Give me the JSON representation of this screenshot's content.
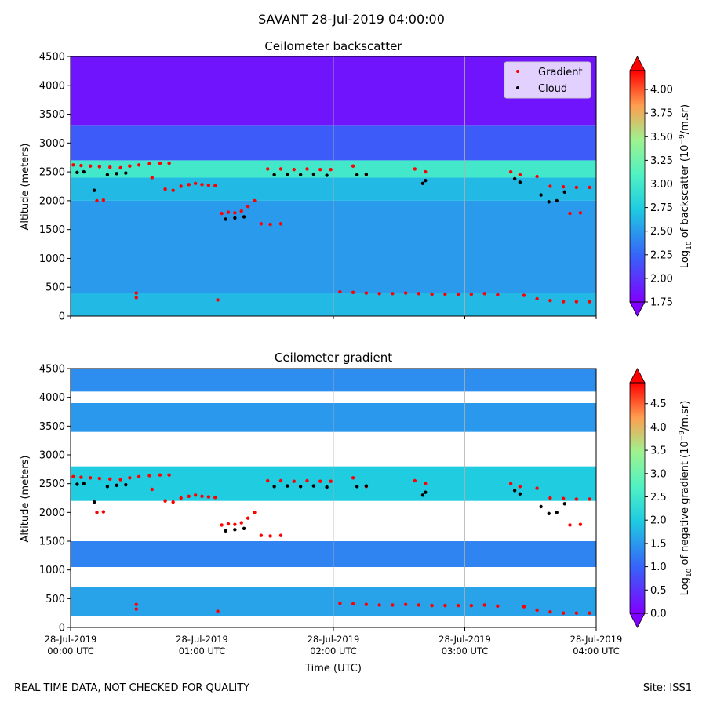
{
  "suptitle": "SAVANT 28-Jul-2019 04:00:00",
  "footer": {
    "left": "REAL TIME DATA, NOT CHECKED FOR QUALITY",
    "right": "Site: ISS1"
  },
  "colors": {
    "gradient_marker": "#ff0000",
    "cloud_marker": "#000000"
  },
  "chart_data": [
    {
      "type": "heatmap",
      "title": "Ceilometer backscatter",
      "ylabel": "Altitude (meters)",
      "xlabel": "",
      "ylim": [
        0,
        4500
      ],
      "yticks": [
        "0",
        "500",
        "1000",
        "1500",
        "2000",
        "2500",
        "3000",
        "3500",
        "4000",
        "4500"
      ],
      "xlim": [
        "28-Jul-2019 00:00 UTC",
        "28-Jul-2019 04:00 UTC"
      ],
      "grid": "vertical lines at each hour",
      "colormap": "rainbow",
      "colorbar": {
        "label_prefix": "Log",
        "label_sub": "10",
        "label_rest": " of backscatter (10",
        "label_sup": "−9",
        "label_end": "/m.sr)",
        "ticks": [
          "1.75",
          "2.00",
          "2.25",
          "2.50",
          "2.75",
          "3.00",
          "3.25",
          "3.50",
          "3.75",
          "4.00"
        ],
        "range": [
          1.75,
          4.2
        ]
      },
      "legend": {
        "placement": "top-right",
        "entries": [
          "Gradient",
          "Cloud"
        ]
      },
      "layers": [
        {
          "altitude_range": [
            0,
            400
          ],
          "value": 2.65
        },
        {
          "altitude_range": [
            400,
            2000
          ],
          "value": 2.5
        },
        {
          "altitude_range": [
            2000,
            2400
          ],
          "value": 2.65
        },
        {
          "altitude_range": [
            2400,
            2700
          ],
          "value": 3.0
        },
        {
          "altitude_range": [
            2700,
            3300
          ],
          "value": 2.2
        },
        {
          "altitude_range": [
            3300,
            4500
          ],
          "value": 1.85
        }
      ]
    },
    {
      "type": "heatmap",
      "title": "Ceilometer gradient",
      "ylabel": "Altitude (meters)",
      "xlabel": "Time (UTC)",
      "ylim": [
        0,
        4500
      ],
      "yticks": [
        "0",
        "500",
        "1000",
        "1500",
        "2000",
        "2500",
        "3000",
        "3500",
        "4000",
        "4500"
      ],
      "xticks": [
        [
          "28-Jul-2019",
          "00:00 UTC"
        ],
        [
          "28-Jul-2019",
          "01:00 UTC"
        ],
        [
          "28-Jul-2019",
          "02:00 UTC"
        ],
        [
          "28-Jul-2019",
          "03:00 UTC"
        ],
        [
          "28-Jul-2019",
          "04:00 UTC"
        ]
      ],
      "grid": "vertical lines at each hour",
      "colormap": "rainbow",
      "colorbar": {
        "label_prefix": "Log",
        "label_sub": "10",
        "label_rest": " of negative gradient (10",
        "label_sup": "−9",
        "label_end": "/m.sr)",
        "ticks": [
          "0.0",
          "0.5",
          "1.0",
          "1.5",
          "2.0",
          "2.5",
          "3.0",
          "3.5",
          "4.0",
          "4.5"
        ],
        "range": [
          0,
          4.95
        ]
      },
      "bands": [
        {
          "altitude_range": [
            200,
            700
          ],
          "value": 1.6
        },
        {
          "altitude_range": [
            1050,
            1500
          ],
          "value": 1.3
        },
        {
          "altitude_range": [
            2200,
            2800
          ],
          "value": 2.0
        },
        {
          "altitude_range": [
            3400,
            3900
          ],
          "value": 1.5
        },
        {
          "altitude_range": [
            4100,
            4500
          ],
          "value": 1.4
        }
      ]
    }
  ],
  "overlay_series": [
    {
      "name": "Gradient",
      "points": [
        [
          0.02,
          2620
        ],
        [
          0.08,
          2610
        ],
        [
          0.15,
          2600
        ],
        [
          0.22,
          2590
        ],
        [
          0.3,
          2580
        ],
        [
          0.38,
          2570
        ],
        [
          0.45,
          2600
        ],
        [
          0.52,
          2620
        ],
        [
          0.6,
          2640
        ],
        [
          0.68,
          2650
        ],
        [
          0.75,
          2650
        ],
        [
          0.2,
          2000
        ],
        [
          0.25,
          2010
        ],
        [
          0.72,
          2200
        ],
        [
          0.78,
          2180
        ],
        [
          0.84,
          2250
        ],
        [
          0.9,
          2280
        ],
        [
          0.95,
          2300
        ],
        [
          0.62,
          2400
        ],
        [
          1.0,
          2280
        ],
        [
          1.05,
          2270
        ],
        [
          1.1,
          2260
        ],
        [
          1.15,
          1780
        ],
        [
          1.2,
          1800
        ],
        [
          1.25,
          1790
        ],
        [
          1.3,
          1820
        ],
        [
          1.35,
          1900
        ],
        [
          1.4,
          2000
        ],
        [
          1.45,
          1600
        ],
        [
          1.52,
          1590
        ],
        [
          1.6,
          1600
        ],
        [
          1.5,
          2550
        ],
        [
          1.6,
          2550
        ],
        [
          1.7,
          2540
        ],
        [
          1.8,
          2550
        ],
        [
          1.9,
          2540
        ],
        [
          1.98,
          2540
        ],
        [
          2.05,
          420
        ],
        [
          2.15,
          410
        ],
        [
          2.25,
          400
        ],
        [
          2.35,
          390
        ],
        [
          2.45,
          390
        ],
        [
          2.55,
          400
        ],
        [
          2.65,
          390
        ],
        [
          2.75,
          380
        ],
        [
          2.85,
          380
        ],
        [
          2.95,
          380
        ],
        [
          3.05,
          380
        ],
        [
          3.15,
          390
        ],
        [
          3.25,
          370
        ],
        [
          3.45,
          360
        ],
        [
          3.55,
          300
        ],
        [
          3.65,
          270
        ],
        [
          3.75,
          250
        ],
        [
          3.85,
          250
        ],
        [
          3.95,
          250
        ],
        [
          2.15,
          2600
        ],
        [
          2.25,
          2450
        ],
        [
          2.62,
          2550
        ],
        [
          2.7,
          2500
        ],
        [
          3.35,
          2500
        ],
        [
          3.42,
          2450
        ],
        [
          3.55,
          2420
        ],
        [
          3.65,
          2250
        ],
        [
          3.75,
          2240
        ],
        [
          3.85,
          2230
        ],
        [
          3.95,
          2230
        ],
        [
          3.8,
          1780
        ],
        [
          3.88,
          1790
        ],
        [
          0.5,
          400
        ],
        [
          0.5,
          320
        ],
        [
          1.12,
          280
        ]
      ]
    },
    {
      "name": "Cloud",
      "points": [
        [
          0.05,
          2490
        ],
        [
          0.1,
          2500
        ],
        [
          0.18,
          2180
        ],
        [
          0.28,
          2450
        ],
        [
          0.35,
          2470
        ],
        [
          0.42,
          2480
        ],
        [
          1.18,
          1680
        ],
        [
          1.25,
          1700
        ],
        [
          1.32,
          1720
        ],
        [
          1.55,
          2450
        ],
        [
          1.65,
          2460
        ],
        [
          1.75,
          2450
        ],
        [
          1.85,
          2460
        ],
        [
          1.95,
          2440
        ],
        [
          2.18,
          2450
        ],
        [
          2.25,
          2460
        ],
        [
          2.68,
          2300
        ],
        [
          2.7,
          2350
        ],
        [
          3.38,
          2380
        ],
        [
          3.42,
          2320
        ],
        [
          3.58,
          2100
        ],
        [
          3.64,
          1980
        ],
        [
          3.7,
          2000
        ],
        [
          3.76,
          2150
        ]
      ]
    }
  ]
}
